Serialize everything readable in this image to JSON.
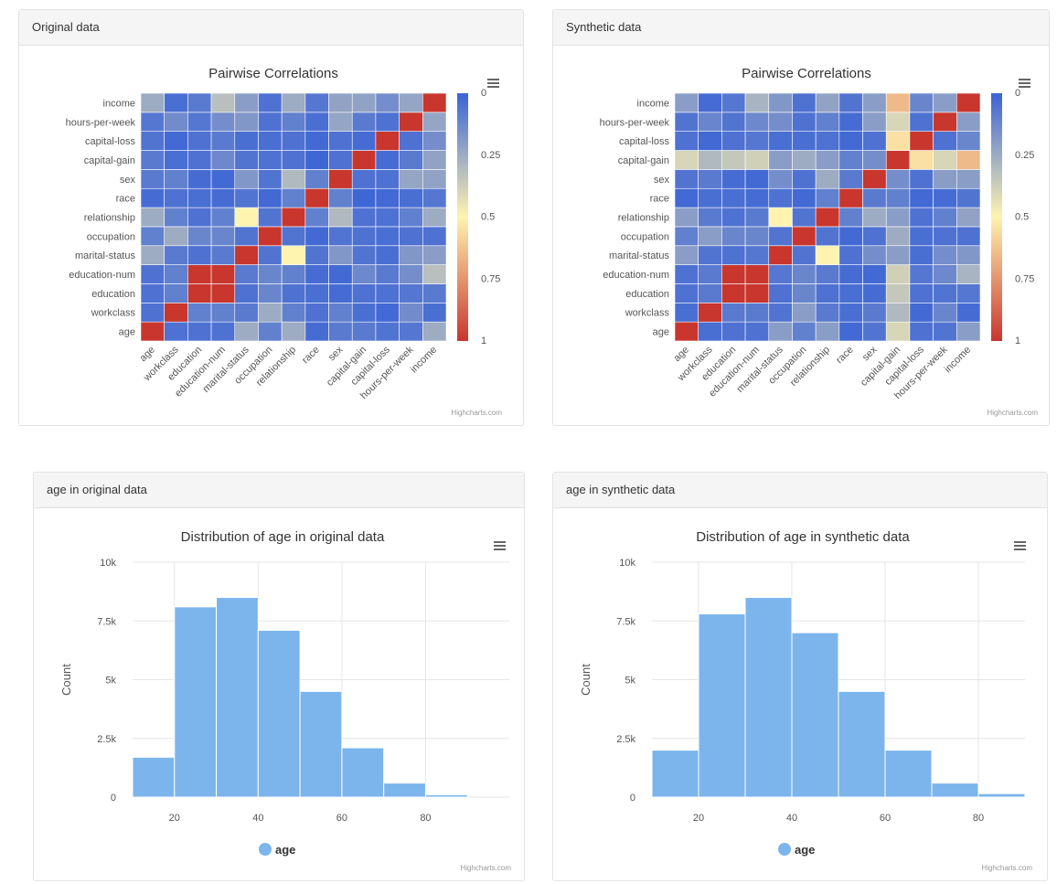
{
  "panels": {
    "orig_corr": {
      "header": "Original data"
    },
    "syn_corr": {
      "header": "Synthetic data"
    },
    "orig_age": {
      "header": "age in original data"
    },
    "syn_age": {
      "header": "age in synthetic data"
    }
  },
  "credit_text": "Highcharts.com",
  "colors": {
    "blue": "#3a63d6",
    "cream": "#fff3b0",
    "red": "#c8362e",
    "bar": "#7cb5ec",
    "grid": "#e6e6e6"
  },
  "icons": {
    "menu": "hamburger-menu-icon",
    "legend_marker": "circle-legend-marker"
  },
  "chart_data": [
    {
      "type": "heatmap",
      "id": "orig_corr",
      "title": "Pairwise Correlations",
      "x_categories": [
        "age",
        "workclass",
        "education",
        "education-num",
        "marital-status",
        "occupation",
        "relationship",
        "race",
        "sex",
        "capital-gain",
        "capital-loss",
        "hours-per-week",
        "income"
      ],
      "y_categories": [
        "age",
        "workclass",
        "education",
        "education-num",
        "marital-status",
        "occupation",
        "relationship",
        "race",
        "sex",
        "capital-gain",
        "capital-loss",
        "hours-per-week",
        "income"
      ],
      "colorbar_ticks": [
        "1",
        "0.75",
        "0.5",
        "0.25",
        "0"
      ],
      "colorbar_range": [
        0,
        1
      ],
      "diagonal_value": 1,
      "background_value": 0.05,
      "values": [
        [
          1,
          0.05,
          0.05,
          0.05,
          0.25,
          0.1,
          0.25,
          0.03,
          0.08,
          0.08,
          0.06,
          0.07,
          0.25
        ],
        [
          0.05,
          1,
          0.1,
          0.1,
          0.08,
          0.25,
          0.1,
          0.05,
          0.1,
          0.04,
          0.02,
          0.14,
          0.04
        ],
        [
          0.05,
          0.1,
          1,
          1,
          0.05,
          0.12,
          0.05,
          0.04,
          0.03,
          0.05,
          0.05,
          0.07,
          0.08
        ],
        [
          0.05,
          0.1,
          1,
          1,
          0.08,
          0.12,
          0.1,
          0.03,
          0.02,
          0.13,
          0.08,
          0.15,
          0.32
        ],
        [
          0.25,
          0.08,
          0.05,
          0.08,
          1,
          0.06,
          0.5,
          0.06,
          0.18,
          0.06,
          0.04,
          0.18,
          0.2
        ],
        [
          0.1,
          0.25,
          0.12,
          0.12,
          0.06,
          1,
          0.06,
          0.02,
          0.06,
          0.05,
          0.04,
          0.05,
          0.05
        ],
        [
          0.25,
          0.1,
          0.05,
          0.1,
          0.5,
          0.06,
          1,
          0.1,
          0.3,
          0.05,
          0.05,
          0.1,
          0.25
        ],
        [
          0.03,
          0.05,
          0.04,
          0.03,
          0.06,
          0.02,
          0.1,
          1,
          0.1,
          0.01,
          0.02,
          0.04,
          0.07
        ],
        [
          0.08,
          0.1,
          0.03,
          0.02,
          0.18,
          0.06,
          0.3,
          0.1,
          1,
          0.05,
          0.05,
          0.23,
          0.22
        ],
        [
          0.08,
          0.04,
          0.05,
          0.13,
          0.06,
          0.05,
          0.05,
          0.01,
          0.05,
          1,
          0.03,
          0.08,
          0.22
        ],
        [
          0.06,
          0.02,
          0.05,
          0.08,
          0.04,
          0.04,
          0.05,
          0.02,
          0.05,
          0.03,
          1,
          0.05,
          0.15
        ],
        [
          0.07,
          0.14,
          0.07,
          0.15,
          0.18,
          0.05,
          0.1,
          0.04,
          0.23,
          0.08,
          0.05,
          1,
          0.23
        ],
        [
          0.25,
          0.04,
          0.08,
          0.32,
          0.2,
          0.05,
          0.25,
          0.07,
          0.22,
          0.22,
          0.15,
          0.23,
          1
        ]
      ]
    },
    {
      "type": "heatmap",
      "id": "syn_corr",
      "title": "Pairwise Correlations",
      "x_categories": [
        "age",
        "workclass",
        "education",
        "education-num",
        "marital-status",
        "occupation",
        "relationship",
        "race",
        "sex",
        "capital-gain",
        "capital-loss",
        "hours-per-week",
        "income"
      ],
      "y_categories": [
        "age",
        "workclass",
        "education",
        "education-num",
        "marital-status",
        "occupation",
        "relationship",
        "race",
        "sex",
        "capital-gain",
        "capital-loss",
        "hours-per-week",
        "income"
      ],
      "colorbar_ticks": [
        "1",
        "0.75",
        "0.5",
        "0.25",
        "0"
      ],
      "colorbar_range": [
        0,
        1
      ],
      "values": [
        [
          1,
          0.04,
          0.05,
          0.05,
          0.2,
          0.1,
          0.2,
          0.02,
          0.06,
          0.4,
          0.05,
          0.06,
          0.2
        ],
        [
          0.04,
          1,
          0.08,
          0.08,
          0.06,
          0.2,
          0.08,
          0.04,
          0.08,
          0.3,
          0.02,
          0.12,
          0.03
        ],
        [
          0.05,
          0.08,
          1,
          1,
          0.05,
          0.12,
          0.05,
          0.04,
          0.03,
          0.35,
          0.05,
          0.06,
          0.07
        ],
        [
          0.05,
          0.08,
          1,
          1,
          0.07,
          0.12,
          0.08,
          0.03,
          0.02,
          0.38,
          0.07,
          0.13,
          0.28
        ],
        [
          0.2,
          0.06,
          0.05,
          0.07,
          1,
          0.06,
          0.5,
          0.05,
          0.15,
          0.2,
          0.04,
          0.15,
          0.18
        ],
        [
          0.1,
          0.2,
          0.12,
          0.12,
          0.06,
          1,
          0.06,
          0.02,
          0.05,
          0.25,
          0.04,
          0.05,
          0.05
        ],
        [
          0.2,
          0.08,
          0.05,
          0.08,
          0.5,
          0.06,
          1,
          0.1,
          0.25,
          0.2,
          0.05,
          0.1,
          0.22
        ],
        [
          0.02,
          0.04,
          0.04,
          0.03,
          0.05,
          0.02,
          0.1,
          1,
          0.08,
          0.1,
          0.02,
          0.03,
          0.06
        ],
        [
          0.06,
          0.08,
          0.03,
          0.02,
          0.15,
          0.05,
          0.25,
          0.08,
          1,
          0.15,
          0.05,
          0.2,
          0.2
        ],
        [
          0.4,
          0.3,
          0.35,
          0.38,
          0.2,
          0.25,
          0.2,
          0.1,
          0.15,
          1,
          0.55,
          0.4,
          0.65
        ],
        [
          0.05,
          0.02,
          0.05,
          0.07,
          0.04,
          0.04,
          0.05,
          0.02,
          0.05,
          0.55,
          1,
          0.05,
          0.12
        ],
        [
          0.06,
          0.12,
          0.06,
          0.13,
          0.15,
          0.05,
          0.1,
          0.03,
          0.2,
          0.4,
          0.05,
          1,
          0.2
        ],
        [
          0.2,
          0.03,
          0.07,
          0.28,
          0.18,
          0.05,
          0.22,
          0.06,
          0.2,
          0.65,
          0.12,
          0.2,
          1
        ]
      ]
    },
    {
      "type": "bar",
      "id": "orig_age",
      "title": "Distribution of age in original data",
      "ylabel": "Count",
      "legend": "age",
      "bins": [
        [
          10,
          20
        ],
        [
          20,
          30
        ],
        [
          30,
          40
        ],
        [
          40,
          50
        ],
        [
          50,
          60
        ],
        [
          60,
          70
        ],
        [
          70,
          80
        ],
        [
          80,
          90
        ]
      ],
      "values": [
        1700,
        8100,
        8500,
        7100,
        4500,
        2100,
        600,
        100
      ],
      "xlim": [
        10,
        100
      ],
      "ylim": [
        0,
        10000
      ],
      "x_ticks": [
        20,
        40,
        60,
        80
      ],
      "y_ticks": [
        0,
        2500,
        5000,
        7500,
        10000
      ],
      "y_tick_labels": [
        "0",
        "2.5k",
        "5k",
        "7.5k",
        "10k"
      ]
    },
    {
      "type": "bar",
      "id": "syn_age",
      "title": "Distribution of age in synthetic data",
      "ylabel": "Count",
      "legend": "age",
      "bins": [
        [
          10,
          20
        ],
        [
          20,
          30
        ],
        [
          30,
          40
        ],
        [
          40,
          50
        ],
        [
          50,
          60
        ],
        [
          60,
          70
        ],
        [
          70,
          80
        ],
        [
          80,
          90
        ]
      ],
      "values": [
        2000,
        7800,
        8500,
        7000,
        4500,
        2000,
        600,
        150
      ],
      "xlim": [
        10,
        90
      ],
      "ylim": [
        0,
        10000
      ],
      "x_ticks": [
        20,
        40,
        60,
        80
      ],
      "y_ticks": [
        0,
        2500,
        5000,
        7500,
        10000
      ],
      "y_tick_labels": [
        "0",
        "2.5k",
        "5k",
        "7.5k",
        "10k"
      ]
    }
  ]
}
